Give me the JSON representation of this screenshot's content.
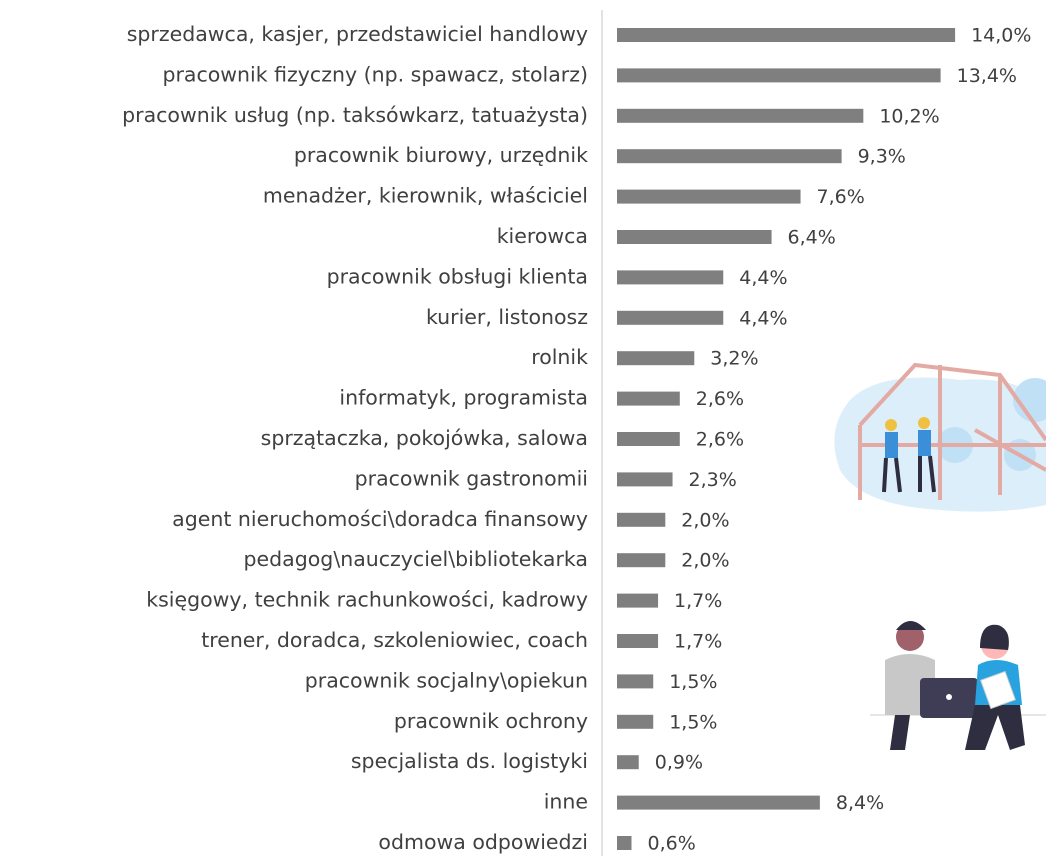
{
  "chart_data": {
    "type": "barh",
    "categories": [
      "sprzedawca, kasjer, przedstawiciel handlowy",
      "pracownik fizyczny (np. spawacz, stolarz)",
      "pracownik usług (np. taksówkarz, tatuażysta)",
      "pracownik biurowy, urzędnik",
      "menadżer, kierownik, właściciel",
      "kierowca",
      "pracownik obsługi klienta",
      "kurier, listonosz",
      "rolnik",
      "informatyk, programista",
      "sprzątaczka, pokojówka, salowa",
      "pracownik gastronomii",
      "agent nieruchomości\\doradca finansowy",
      "pedagog\\nauczyciel\\bibliotekarka",
      "księgowy, technik rachunkowości, kadrowy",
      "trener, doradca, szkoleniowiec, coach",
      "pracownik socjalny\\opiekun",
      "pracownik ochrony",
      "specjalista ds. logistyki",
      "inne",
      "odmowa odpowiedzi"
    ],
    "values": [
      14.0,
      13.4,
      10.2,
      9.3,
      7.6,
      6.4,
      4.4,
      4.4,
      3.2,
      2.6,
      2.6,
      2.3,
      2.0,
      2.0,
      1.7,
      1.7,
      1.5,
      1.5,
      0.9,
      8.4,
      0.6
    ],
    "value_labels": [
      "14,0%",
      "13,4%",
      "10,2%",
      "9,3%",
      "7,6%",
      "6,4%",
      "4,4%",
      "4,4%",
      "3,2%",
      "2,6%",
      "2,6%",
      "2,3%",
      "2,0%",
      "2,0%",
      "1,7%",
      "1,7%",
      "1,5%",
      "1,5%",
      "0,9%",
      "8,4%",
      "0,6%"
    ],
    "color": "#7f7f7f"
  }
}
